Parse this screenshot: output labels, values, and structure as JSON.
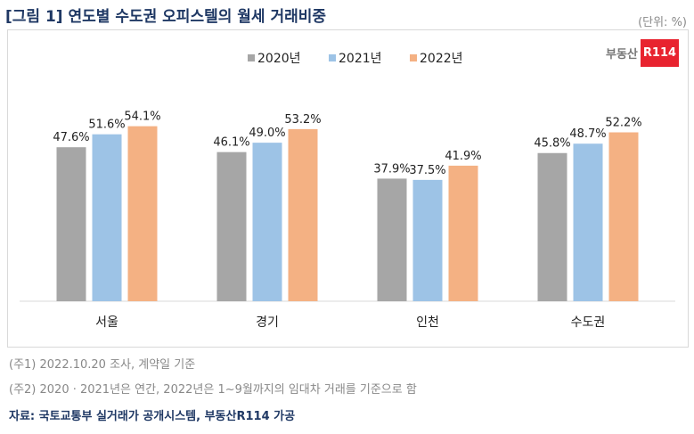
{
  "title": "[그림 1] 연도별 수도권 오피스텔의 월세 거래비중",
  "unit": "(단위: %)",
  "logo": {
    "text": "부동산",
    "badge": "R114"
  },
  "notes": [
    "(주1) 2022.10.20 조사, 계약일 기준",
    "(주2) 2020 · 2021년은 연간, 2022년은 1~9월까지의 임대차 거래를 기준으로 함"
  ],
  "source": "자료: 국토교통부 실거래가 공개시스템, 부동산R114 가공",
  "chart_data": {
    "type": "bar",
    "categories": [
      "서울",
      "경기",
      "인천",
      "수도권"
    ],
    "series": [
      {
        "name": "2020년",
        "color": "#a6a6a6",
        "values": [
          47.6,
          46.1,
          37.9,
          45.8
        ]
      },
      {
        "name": "2021년",
        "color": "#9dc3e6",
        "values": [
          51.6,
          49.0,
          37.5,
          48.7
        ]
      },
      {
        "name": "2022년",
        "color": "#f4b183",
        "values": [
          54.1,
          53.2,
          41.9,
          52.2
        ]
      }
    ],
    "legend": "top-center",
    "grid": false,
    "ylim": [
      0,
      60
    ]
  }
}
